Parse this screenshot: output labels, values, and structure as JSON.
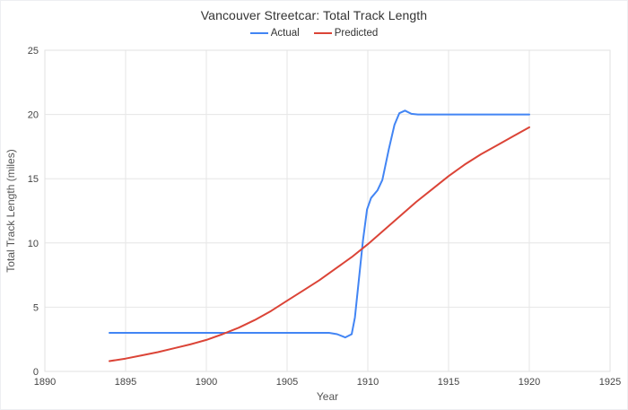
{
  "chart_data": {
    "type": "line",
    "title": "Vancouver Streetcar: Total Track Length",
    "xlabel": "Year",
    "ylabel": "Total Track Length (miles)",
    "xlim": [
      1890,
      1925
    ],
    "ylim": [
      0,
      25
    ],
    "x_ticks": [
      1890,
      1895,
      1900,
      1905,
      1910,
      1915,
      1920,
      1925
    ],
    "y_ticks": [
      0,
      5,
      10,
      15,
      20,
      25
    ],
    "grid": true,
    "legend_position": "top-center",
    "colors": {
      "grid": "#e6e6e6",
      "plot_border": "#e2e2e2",
      "tick_text": "#444444",
      "axis_title_text": "#555555",
      "title_text": "#333333"
    },
    "series": [
      {
        "name": "Actual",
        "color": "#4285f4",
        "points": [
          [
            1894,
            3
          ],
          [
            1900,
            3
          ],
          [
            1904,
            3
          ],
          [
            1907.6,
            3
          ],
          [
            1908.1,
            2.9
          ],
          [
            1908.6,
            2.65
          ],
          [
            1909.0,
            2.9
          ],
          [
            1909.2,
            4.2
          ],
          [
            1909.45,
            7.2
          ],
          [
            1909.7,
            10.2
          ],
          [
            1909.95,
            12.6
          ],
          [
            1910.2,
            13.5
          ],
          [
            1910.6,
            14.1
          ],
          [
            1910.9,
            14.9
          ],
          [
            1911.3,
            17.3
          ],
          [
            1911.65,
            19.2
          ],
          [
            1911.95,
            20.1
          ],
          [
            1912.3,
            20.3
          ],
          [
            1912.7,
            20.05
          ],
          [
            1913.1,
            20
          ],
          [
            1916,
            20
          ],
          [
            1920,
            20
          ]
        ]
      },
      {
        "name": "Predicted",
        "color": "#db4437",
        "points": [
          [
            1894,
            0.8
          ],
          [
            1895,
            1.0
          ],
          [
            1896,
            1.25
          ],
          [
            1897,
            1.5
          ],
          [
            1898,
            1.8
          ],
          [
            1899,
            2.1
          ],
          [
            1900,
            2.45
          ],
          [
            1901,
            2.9
          ],
          [
            1902,
            3.4
          ],
          [
            1903,
            4.0
          ],
          [
            1904,
            4.7
          ],
          [
            1905,
            5.5
          ],
          [
            1906,
            6.3
          ],
          [
            1907,
            7.1
          ],
          [
            1908,
            8.0
          ],
          [
            1909,
            8.9
          ],
          [
            1910,
            9.9
          ],
          [
            1911,
            11.0
          ],
          [
            1912,
            12.1
          ],
          [
            1913,
            13.2
          ],
          [
            1914,
            14.2
          ],
          [
            1915,
            15.2
          ],
          [
            1916,
            16.1
          ],
          [
            1917,
            16.9
          ],
          [
            1918,
            17.6
          ],
          [
            1919,
            18.3
          ],
          [
            1920,
            19.0
          ]
        ]
      }
    ]
  }
}
